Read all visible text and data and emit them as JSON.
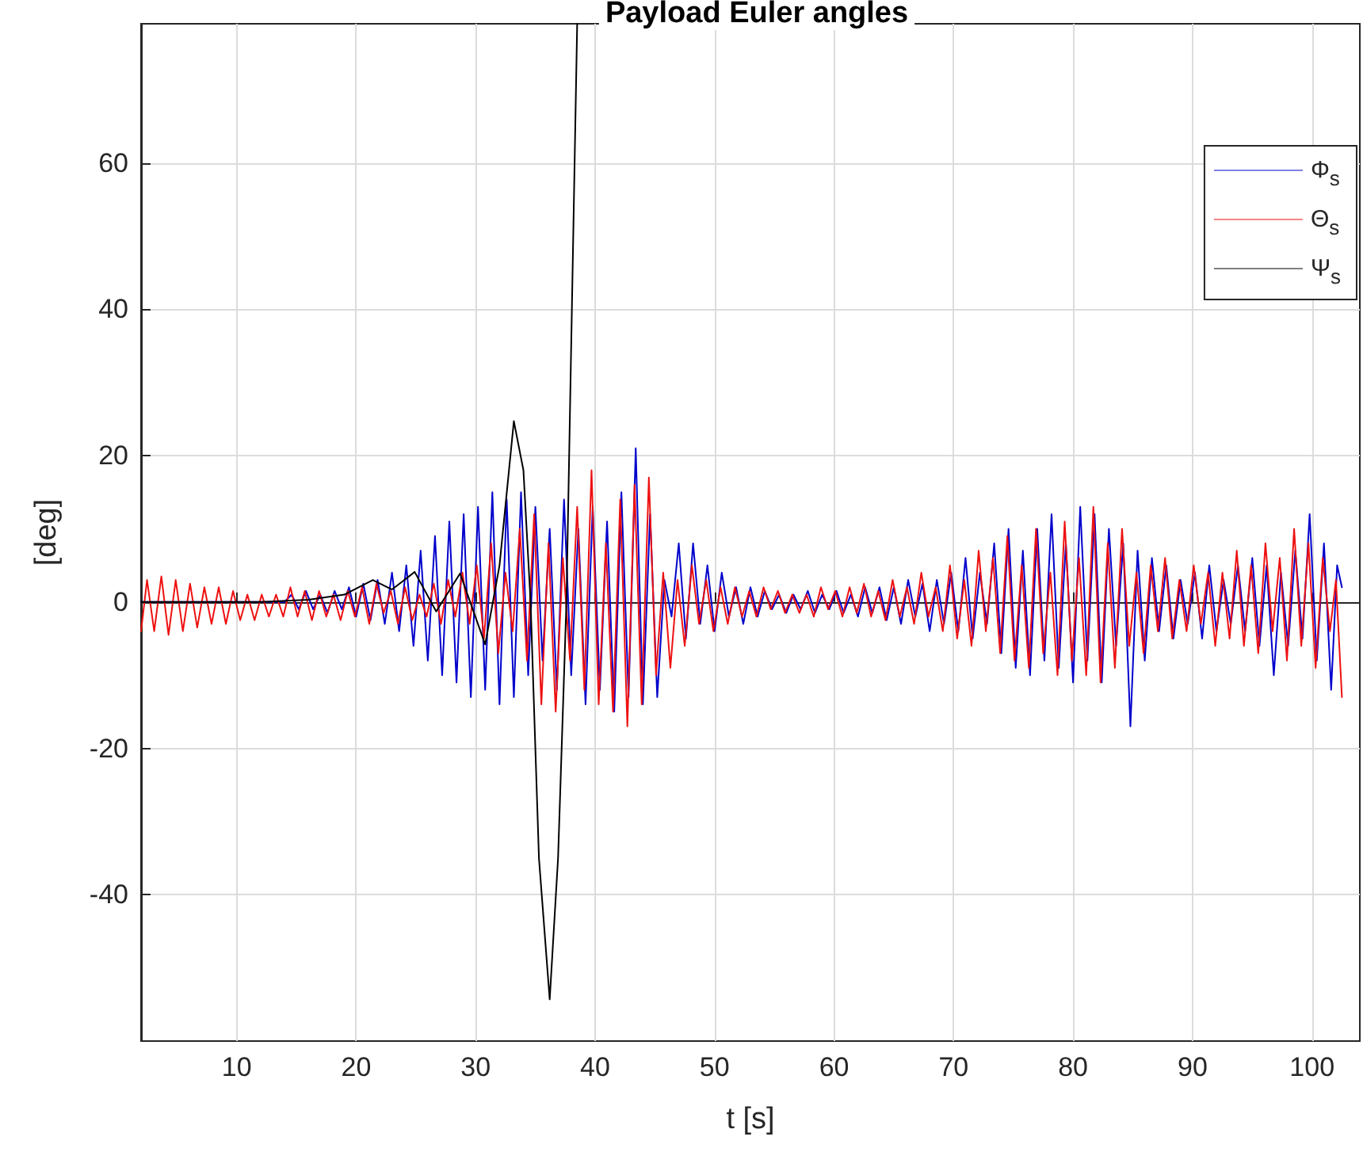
{
  "chart_data": {
    "type": "line",
    "title": "Payload Euler angles",
    "xlabel": "t [s]",
    "ylabel": "[deg]",
    "xlim": [
      2,
      104
    ],
    "xticks": [
      10,
      20,
      30,
      40,
      50,
      60,
      70,
      80,
      90,
      100
    ],
    "ylim": [
      -60,
      79
    ],
    "yticks": [
      -40,
      -20,
      0,
      20,
      40,
      60
    ],
    "grid": true,
    "legend": "top right",
    "marker": "none",
    "line_style": "solid",
    "series": [
      {
        "name": "Φ$_{s}$",
        "color": "#0000cc",
        "x": [
          2,
          14,
          14.6,
          15.2,
          15.8,
          16.4,
          17,
          17.6,
          18.2,
          18.8,
          19.4,
          20,
          20.6,
          21.2,
          21.8,
          22.4,
          23,
          23.6,
          24.2,
          24.8,
          25.4,
          26,
          26.6,
          27.2,
          27.8,
          28.4,
          29,
          29.6,
          30.2,
          30.8,
          31.4,
          32,
          32.6,
          33.2,
          33.8,
          34.4,
          35,
          35.6,
          36.2,
          36.8,
          37.4,
          38,
          38.6,
          39.2,
          39.8,
          40.4,
          41,
          41.6,
          42.2,
          42.8,
          43.4,
          44,
          44.6,
          45.2,
          45.8,
          46.4,
          47,
          47.6,
          48.2,
          48.8,
          49.4,
          50,
          50.6,
          51.2,
          51.8,
          52.4,
          53,
          53.6,
          54.2,
          54.8,
          55.4,
          56,
          56.6,
          57.2,
          57.8,
          58.4,
          59,
          59.6,
          60.2,
          60.8,
          61.4,
          62,
          62.6,
          63.2,
          63.8,
          64.4,
          65,
          65.6,
          66.2,
          66.8,
          67.4,
          68,
          68.6,
          69.2,
          69.8,
          70.4,
          71,
          71.6,
          72.2,
          72.8,
          73.4,
          74,
          74.6,
          75.2,
          75.8,
          76.4,
          77,
          77.6,
          78.2,
          78.8,
          79.4,
          80,
          80.6,
          81.2,
          81.8,
          82.4,
          83,
          83.6,
          84.2,
          84.8,
          85.4,
          86,
          86.6,
          87.2,
          87.8,
          88.4,
          89,
          89.6,
          90.2,
          90.8,
          91.4,
          92,
          92.6,
          93.2,
          93.8,
          94.4,
          95,
          95.6,
          96.2,
          96.8,
          97.4,
          98,
          98.6,
          99.2,
          99.8,
          100.4,
          101,
          101.6,
          102.1,
          102.5
        ],
        "values": [
          0,
          0,
          1,
          -1,
          1.5,
          -1,
          1,
          -1.5,
          1.5,
          -1,
          2,
          -2,
          2.5,
          -2.5,
          3,
          -3,
          4,
          -4,
          5,
          -6,
          7,
          -8,
          9,
          -10,
          11,
          -11,
          12,
          -13,
          13,
          -12,
          15,
          -14,
          14,
          -13,
          15,
          -10,
          13,
          -8,
          10,
          -12,
          14,
          -10,
          10,
          -14,
          13,
          -12,
          11,
          -15,
          15,
          -13,
          21,
          -14,
          12,
          -13,
          3,
          -2,
          8,
          -5,
          8,
          -3,
          5,
          -4,
          4,
          -2,
          2,
          -3,
          2,
          -2,
          1.5,
          -1,
          1,
          -1.5,
          1,
          -1,
          1.5,
          -1.5,
          1,
          -1,
          1.5,
          -1.5,
          1,
          -2,
          2,
          -1.5,
          2,
          -2.5,
          2,
          -3,
          3,
          -2,
          2.5,
          -4,
          3,
          -3,
          4,
          -4,
          6,
          -5,
          4,
          -3,
          8,
          -7,
          10,
          -9,
          7,
          -10,
          10,
          -8,
          12,
          -9,
          8,
          -11,
          13,
          -8,
          12,
          -11,
          10,
          -6,
          8,
          -17,
          7,
          -8,
          6,
          -4,
          5,
          -5,
          3,
          -3,
          4,
          -5,
          5,
          -4,
          3,
          -3,
          5,
          -4,
          6,
          -6,
          5,
          -10,
          4,
          -6,
          7,
          -5,
          12,
          -8,
          8,
          -12,
          5,
          2
        ]
      },
      {
        "name": "Θ$_{s}$",
        "color": "#ee1111",
        "x": [
          2,
          2.5,
          3.1,
          3.7,
          4.3,
          4.9,
          5.5,
          6.1,
          6.7,
          7.3,
          7.9,
          8.5,
          9.1,
          9.7,
          10.3,
          10.9,
          11.5,
          12.1,
          12.7,
          13.3,
          13.9,
          14.5,
          15.1,
          15.7,
          16.3,
          16.9,
          17.5,
          18.1,
          18.7,
          19.3,
          19.9,
          20.5,
          21.1,
          21.7,
          22.3,
          22.9,
          23.5,
          24.1,
          24.7,
          25.3,
          25.9,
          26.5,
          27.1,
          27.7,
          28.3,
          28.9,
          29.5,
          30.1,
          30.7,
          31.3,
          31.9,
          32.5,
          33.1,
          33.7,
          34.3,
          34.9,
          35.5,
          36.1,
          36.7,
          37.3,
          37.9,
          38.5,
          39.1,
          39.7,
          40.3,
          40.9,
          41.5,
          42.1,
          42.7,
          43.3,
          43.9,
          44.5,
          45.1,
          45.7,
          46.3,
          46.9,
          47.5,
          48.1,
          48.7,
          49.3,
          49.9,
          50.5,
          51.1,
          51.7,
          52.3,
          52.9,
          53.5,
          54.1,
          54.7,
          55.3,
          55.9,
          56.5,
          57.1,
          57.7,
          58.3,
          58.9,
          59.5,
          60.1,
          60.7,
          61.3,
          61.9,
          62.5,
          63.1,
          63.7,
          64.3,
          64.9,
          65.5,
          66.1,
          66.7,
          67.3,
          67.9,
          68.5,
          69.1,
          69.7,
          70.3,
          70.9,
          71.5,
          72.1,
          72.7,
          73.3,
          73.9,
          74.5,
          75.1,
          75.7,
          76.3,
          76.9,
          77.5,
          78.1,
          78.7,
          79.3,
          79.9,
          80.5,
          81.1,
          81.7,
          82.3,
          82.9,
          83.5,
          84.1,
          84.7,
          85.3,
          85.9,
          86.5,
          87.1,
          87.7,
          88.3,
          88.9,
          89.5,
          90.1,
          90.7,
          91.3,
          91.9,
          92.5,
          93.1,
          93.7,
          94.3,
          94.9,
          95.5,
          96.1,
          96.7,
          97.3,
          97.9,
          98.5,
          99.1,
          99.7,
          100.3,
          100.9,
          101.5,
          102,
          102.5
        ],
        "values": [
          -4,
          3,
          -4,
          3.5,
          -4.5,
          3,
          -4,
          2.5,
          -3.5,
          2,
          -3,
          2,
          -3,
          1.5,
          -2.5,
          1,
          -2.5,
          1,
          -2,
          1,
          -2,
          2,
          -2,
          1.5,
          -2.5,
          1.5,
          -2,
          1,
          -2.5,
          1.5,
          -2,
          2,
          -3,
          2.5,
          -1.5,
          1.5,
          -3,
          2,
          -2.5,
          1,
          -2,
          2.5,
          -3,
          3,
          -2,
          4,
          -3,
          5,
          -5,
          8,
          -7,
          4,
          -4,
          10,
          -8,
          12,
          -14,
          8,
          -15,
          6,
          -8,
          13,
          -12,
          18,
          -14,
          8,
          -15,
          14,
          -17,
          16,
          -14,
          17,
          -10,
          4,
          -9,
          3,
          -6,
          5,
          -3,
          3,
          -4,
          2,
          -3,
          2,
          -2,
          1.5,
          -2,
          2,
          -1,
          1.5,
          -1.5,
          1,
          -1.5,
          1,
          -2,
          2,
          -1,
          1.5,
          -2,
          2,
          -1.5,
          2.5,
          -2,
          1.5,
          -2.5,
          3,
          -2,
          2,
          -3,
          4,
          -2,
          2,
          -4,
          5,
          -5,
          3,
          -6,
          7,
          -4,
          6,
          -7,
          9,
          -8,
          5,
          -9,
          10,
          -7,
          4,
          -10,
          11,
          -8,
          6,
          -10,
          13,
          -11,
          8,
          -9,
          10,
          -6,
          4,
          -7,
          5,
          -4,
          6,
          -5,
          3,
          -4,
          5,
          -3,
          4,
          -6,
          4,
          -5,
          7,
          -6,
          5,
          -7,
          8,
          -4,
          6,
          -8,
          10,
          -6,
          8,
          -9,
          6,
          -4,
          3,
          -13
        ]
      },
      {
        "name": "Ψ$_{s}$",
        "color": "#000000",
        "x": [
          2,
          12,
          16,
          19,
          21.4,
          23,
          24.9,
          26.7,
          28.7,
          30.8,
          32,
          33.2,
          34,
          34.6,
          35.3,
          36.2,
          36.9,
          37.6,
          38.5
        ],
        "values": [
          0,
          0,
          0.3,
          1,
          3,
          1.7,
          4.1,
          -1.3,
          3.9,
          -5.8,
          5,
          24.7,
          18,
          0,
          -35,
          -54.3,
          -35,
          0,
          79
        ]
      }
    ]
  }
}
